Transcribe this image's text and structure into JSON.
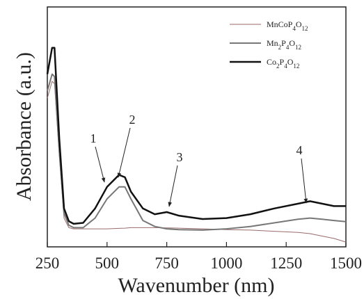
{
  "chart_data": {
    "type": "line",
    "x_label": "Wavenumber (nm)",
    "y_label": "Absorbance (a.u.)",
    "x": [
      250,
      270,
      280,
      300,
      320,
      340,
      360,
      400,
      450,
      500,
      550,
      575,
      600,
      650,
      700,
      750,
      800,
      900,
      1000,
      1100,
      1200,
      1300,
      1350,
      1400,
      1450,
      1500
    ],
    "series": [
      {
        "name": "MnCoP4O12",
        "color": "#9a6a6a",
        "line_width": 1,
        "values": [
          0.62,
          0.69,
          0.68,
          0.38,
          0.12,
          0.08,
          0.075,
          0.075,
          0.075,
          0.075,
          0.077,
          0.078,
          0.08,
          0.08,
          0.08,
          0.079,
          0.078,
          0.075,
          0.072,
          0.07,
          0.065,
          0.06,
          0.055,
          0.045,
          0.035,
          0.02
        ]
      },
      {
        "name": "Mn2P4O12",
        "color": "#777777",
        "line_width": 2,
        "values": [
          0.65,
          0.72,
          0.71,
          0.4,
          0.14,
          0.09,
          0.08,
          0.08,
          0.12,
          0.2,
          0.25,
          0.25,
          0.2,
          0.11,
          0.085,
          0.075,
          0.072,
          0.07,
          0.075,
          0.085,
          0.1,
          0.115,
          0.12,
          0.115,
          0.11,
          0.105
        ]
      },
      {
        "name": "Co2P4O12",
        "color": "#111111",
        "line_width": 2.5,
        "values": [
          0.72,
          0.83,
          0.83,
          0.45,
          0.16,
          0.107,
          0.096,
          0.1,
          0.16,
          0.25,
          0.3,
          0.29,
          0.23,
          0.16,
          0.136,
          0.145,
          0.13,
          0.116,
          0.12,
          0.136,
          0.16,
          0.18,
          0.19,
          0.18,
          0.17,
          0.17
        ]
      }
    ],
    "annotations": [
      "1",
      "2",
      "3",
      "4"
    ],
    "xlim": [
      250,
      1500
    ],
    "xticks": [
      250,
      500,
      750,
      1000,
      1250,
      1500
    ],
    "ylim": [
      0,
      1
    ]
  }
}
